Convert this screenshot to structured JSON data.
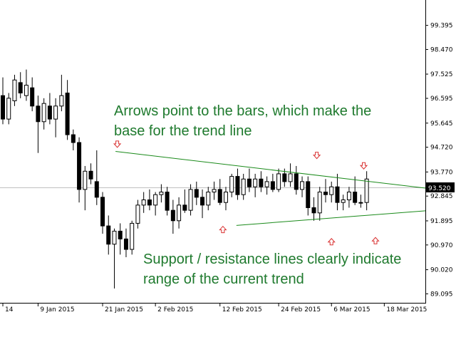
{
  "chart_data": {
    "type": "candlestick",
    "ylim": [
      88.75,
      100.15
    ],
    "xlim": [
      0,
      72
    ],
    "y_ticks": [
      "99.395",
      "98.470",
      "97.525",
      "96.595",
      "95.645",
      "94.720",
      "93.770",
      "92.845",
      "91.895",
      "90.970",
      "90.020",
      "89.095"
    ],
    "x_ticks": [
      {
        "i": 0,
        "label": "14"
      },
      {
        "i": 6,
        "label": "9 Jan 2015"
      },
      {
        "i": 17,
        "label": "21 Jan 2015"
      },
      {
        "i": 26,
        "label": "2 Feb 2015"
      },
      {
        "i": 37,
        "label": "12 Feb 2015"
      },
      {
        "i": 47,
        "label": "24 Feb 2015"
      },
      {
        "i": 56,
        "label": "6 Mar 2015"
      },
      {
        "i": 65,
        "label": "18 Mar 2015"
      }
    ],
    "current_price": "93.520",
    "current_value": 93.52,
    "candles": [
      [
        96.7,
        97.4,
        95.6,
        95.8
      ],
      [
        95.8,
        96.8,
        95.6,
        96.6
      ],
      [
        96.5,
        97.5,
        96.3,
        97.3
      ],
      [
        97.2,
        97.6,
        96.6,
        96.8
      ],
      [
        96.7,
        97.7,
        96.5,
        97.1
      ],
      [
        97.0,
        97.4,
        96.1,
        96.3
      ],
      [
        96.3,
        96.7,
        94.5,
        95.7
      ],
      [
        95.7,
        96.6,
        95.4,
        96.4
      ],
      [
        96.3,
        96.8,
        95.6,
        95.8
      ],
      [
        95.8,
        96.6,
        95.1,
        96.3
      ],
      [
        96.3,
        97.5,
        96.1,
        96.7
      ],
      [
        96.8,
        97.3,
        95.0,
        95.2
      ],
      [
        95.2,
        95.4,
        94.6,
        94.9
      ],
      [
        94.9,
        95.1,
        92.6,
        93.1
      ],
      [
        93.1,
        94.0,
        92.3,
        93.8
      ],
      [
        93.8,
        94.1,
        93.3,
        93.5
      ],
      [
        93.4,
        94.6,
        92.5,
        92.8
      ],
      [
        92.8,
        93.0,
        91.4,
        91.7
      ],
      [
        91.7,
        92.1,
        90.6,
        91.0
      ],
      [
        91.0,
        91.6,
        89.3,
        91.5
      ],
      [
        91.5,
        91.8,
        90.6,
        91.2
      ],
      [
        91.2,
        91.6,
        90.5,
        90.8
      ],
      [
        90.8,
        91.9,
        90.6,
        91.8
      ],
      [
        91.8,
        92.7,
        91.6,
        92.5
      ],
      [
        92.5,
        93.0,
        92.2,
        92.7
      ],
      [
        92.7,
        93.1,
        92.3,
        92.5
      ],
      [
        92.5,
        93.0,
        92.1,
        92.9
      ],
      [
        92.9,
        93.3,
        92.6,
        93.0
      ],
      [
        93.0,
        93.2,
        92.1,
        92.3
      ],
      [
        92.3,
        92.7,
        91.4,
        91.9
      ],
      [
        91.9,
        92.8,
        91.6,
        92.5
      ],
      [
        92.5,
        93.1,
        92.2,
        92.3
      ],
      [
        92.3,
        93.3,
        92.1,
        93.1
      ],
      [
        93.1,
        93.4,
        92.5,
        92.8
      ],
      [
        92.8,
        93.1,
        92.0,
        92.5
      ],
      [
        92.5,
        93.2,
        92.3,
        93.0
      ],
      [
        93.0,
        93.4,
        92.7,
        93.1
      ],
      [
        93.1,
        93.5,
        92.5,
        92.6
      ],
      [
        92.6,
        93.2,
        92.3,
        93.0
      ],
      [
        93.0,
        93.7,
        92.8,
        93.6
      ],
      [
        93.6,
        93.9,
        92.7,
        92.9
      ],
      [
        92.9,
        93.7,
        92.7,
        93.5
      ],
      [
        93.5,
        93.9,
        93.0,
        93.2
      ],
      [
        93.2,
        93.7,
        92.8,
        93.5
      ],
      [
        93.5,
        93.8,
        93.0,
        93.2
      ],
      [
        93.2,
        93.6,
        92.9,
        93.4
      ],
      [
        93.4,
        93.7,
        93.0,
        93.1
      ],
      [
        93.1,
        93.9,
        93.0,
        93.7
      ],
      [
        93.7,
        93.9,
        93.2,
        93.4
      ],
      [
        93.4,
        94.1,
        93.2,
        93.7
      ],
      [
        93.7,
        94.0,
        92.9,
        93.1
      ],
      [
        93.1,
        93.6,
        92.8,
        93.4
      ],
      [
        93.4,
        93.6,
        92.1,
        92.4
      ],
      [
        92.4,
        92.8,
        91.9,
        92.2
      ],
      [
        92.2,
        93.2,
        91.9,
        93.0
      ],
      [
        93.0,
        93.5,
        92.6,
        92.9
      ],
      [
        92.9,
        93.4,
        92.6,
        93.2
      ],
      [
        93.2,
        93.7,
        92.3,
        92.6
      ],
      [
        92.6,
        92.9,
        92.3,
        92.7
      ],
      [
        92.7,
        93.2,
        92.4,
        93.0
      ],
      [
        93.0,
        93.6,
        92.5,
        92.6
      ],
      [
        92.6,
        92.9,
        92.4,
        92.6
      ],
      [
        92.6,
        93.8,
        92.3,
        93.5
      ]
    ],
    "trend_lines": [
      {
        "points": [
          [
            19.2,
            94.56
          ],
          [
            72,
            93.15
          ]
        ],
        "color": "#1a8a1a"
      },
      {
        "points": [
          [
            39.8,
            91.72
          ],
          [
            72,
            92.28
          ]
        ],
        "color": "#1a8a1a"
      }
    ],
    "arrows_down": [
      [
        19.5,
        94.85
      ],
      [
        53.5,
        94.42
      ],
      [
        61.5,
        94.02
      ]
    ],
    "arrows_up": [
      [
        37.5,
        91.55
      ],
      [
        56.0,
        91.08
      ],
      [
        63.5,
        91.12
      ]
    ],
    "annotations": [
      "Arrows point to the bars, which make the",
      "base for the trend line",
      "Support / resistance lines clearly indicate",
      "range of the current trend"
    ],
    "annotation_color": "#1f7a2e",
    "arrow_color": "#d93030",
    "grid": false
  }
}
